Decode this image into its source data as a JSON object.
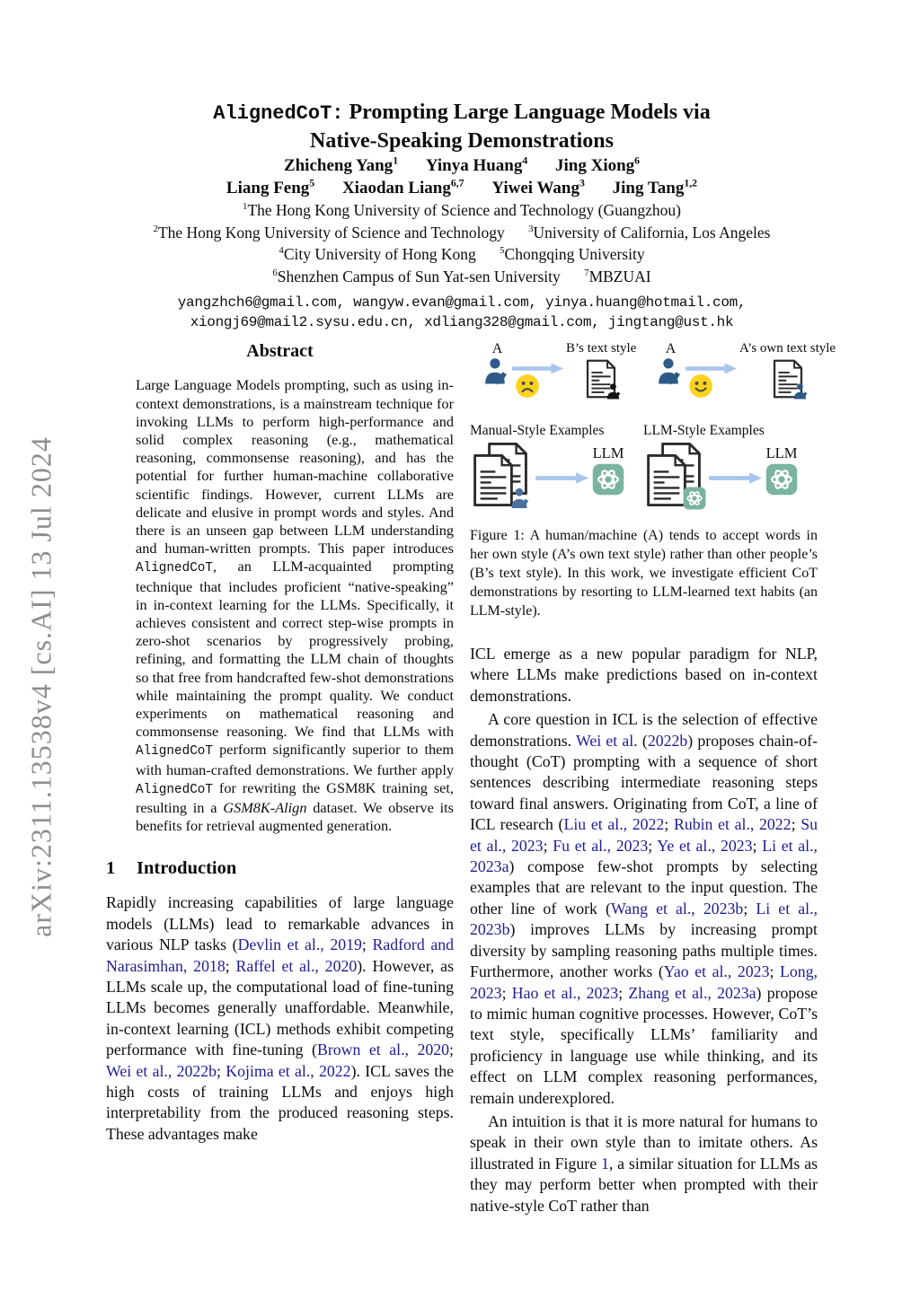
{
  "page": {
    "arxiv_sidebar": "arXiv:2311.13538v4  [cs.AI]  13 Jul 2024"
  },
  "colors": {
    "citation_navy": "#1d1d96",
    "person_blue": "#2d5a88",
    "arrow_blue": "#a9c5ed",
    "face_yellow": "#ffd21e",
    "openai_teal": "#7ab3a2",
    "sidebar_gray": "#8e8e8e"
  },
  "title": {
    "mono_part": "AlignedCoT:",
    "serif_part": " Prompting Large Language Models via",
    "line2": "Native-Speaking Demonstrations"
  },
  "authors": {
    "row1": [
      {
        "name": "Zhicheng Yang",
        "sup": "1"
      },
      {
        "name": "Yinya Huang",
        "sup": "4"
      },
      {
        "name": "Jing Xiong",
        "sup": "6"
      }
    ],
    "row2": [
      {
        "name": "Liang Feng",
        "sup": "5"
      },
      {
        "name": "Xiaodan Liang",
        "sup": "6,7"
      },
      {
        "name": "Yiwei Wang",
        "sup": "3"
      },
      {
        "name": "Jing Tang",
        "sup": "1,2"
      }
    ]
  },
  "affiliations": [
    [
      {
        "sup": "1",
        "text": "The Hong Kong University of Science and Technology (Guangzhou)"
      }
    ],
    [
      {
        "sup": "2",
        "text": "The Hong Kong University of Science and Technology"
      },
      {
        "sup": "3",
        "text": "University of California, Los Angeles"
      }
    ],
    [
      {
        "sup": "4",
        "text": "City University of Hong Kong"
      },
      {
        "sup": "5",
        "text": "Chongqing University"
      }
    ],
    [
      {
        "sup": "6",
        "text": "Shenzhen Campus of Sun Yat-sen University"
      },
      {
        "sup": "7",
        "text": "MBZUAI"
      }
    ]
  ],
  "emails": [
    "yangzhch6@gmail.com, wangyw.evan@gmail.com, yinya.huang@hotmail.com,",
    "xiongj69@mail2.sysu.edu.cn, xdliang328@gmail.com, jingtang@ust.hk"
  ],
  "abstract": {
    "heading": "Abstract",
    "segments": [
      "Large Language Models prompting, such as using in-context demonstrations, is a mainstream technique for invoking LLMs to perform high-performance and solid complex reasoning (e.g., mathematical reasoning, commonsense reasoning), and has the potential for further human-machine collaborative scientific findings. However, current LLMs are delicate and elusive in prompt words and styles. And there is an unseen gap between LLM understanding and human-written prompts. This paper introduces ",
      {
        "t": "AlignedCoT",
        "s": "code"
      },
      ", an LLM-acquainted prompting technique that includes proficient “native-speaking” in in-context learning for the LLMs. Specifically, it achieves consistent and correct step-wise prompts in zero-shot scenarios by progressively probing, refining, and formatting the LLM chain of thoughts so that free from handcrafted few-shot demonstrations while maintaining the prompt quality. We conduct experiments on mathematical reasoning and commonsense reasoning. We find that LLMs with ",
      {
        "t": "AlignedCoT",
        "s": "code"
      },
      " perform significantly superior to them with human-crafted demonstrations. We further apply ",
      {
        "t": "AlignedCoT",
        "s": "code"
      },
      " for rewriting the GSM8K training set, resulting in a ",
      {
        "t": "GSM8K-Align",
        "s": "italic"
      },
      " dataset. We observe its benefits for retrieval augmented generation."
    ]
  },
  "figure1": {
    "row_a": {
      "left": {
        "actor_label": "A",
        "target_label": "B’s text style"
      },
      "right": {
        "actor_label": "A",
        "target_label": "A’s own text style"
      }
    },
    "row_b": {
      "left": {
        "label": "Manual-Style Examples",
        "llm_label": "LLM"
      },
      "right": {
        "label": "LLM-Style Examples",
        "llm_label": "LLM"
      }
    },
    "caption": "Figure 1: A human/machine (A) tends to accept words in her own style (A’s own text style) rather than other people’s (B’s text style). In this work, we investigate efficient CoT demonstrations by resorting to LLM-learned text habits (an LLM-style)."
  },
  "sections": {
    "intro": {
      "number": "1",
      "title": "Introduction"
    }
  },
  "left_column": {
    "intro_para1_segments": [
      "Rapidly increasing capabilities of large language models (LLMs) lead to remarkable advances in various NLP tasks (",
      {
        "t": "Devlin et al., 2019",
        "s": "cite"
      },
      "; ",
      {
        "t": "Radford and Narasimhan, 2018",
        "s": "cite"
      },
      "; ",
      {
        "t": "Raffel et al., 2020",
        "s": "cite"
      },
      "). However, as LLMs scale up, the computational load of fine-tuning LLMs becomes generally unaffordable. Meanwhile, in-context learning (ICL) methods exhibit competing performance with fine-tuning (",
      {
        "t": "Brown et al., 2020",
        "s": "cite"
      },
      "; ",
      {
        "t": "Wei et al., 2022b",
        "s": "cite"
      },
      "; ",
      {
        "t": "Kojima et al., 2022",
        "s": "cite"
      },
      "). ICL saves the high costs of training LLMs and enjoys high interpretability from the produced reasoning steps. These advantages make"
    ]
  },
  "right_column": {
    "para1_segments": [
      "ICL emerge as a new popular paradigm for NLP, where LLMs make predictions based on in-context demonstrations."
    ],
    "para2_segments": [
      "A core question in ICL is the selection of effective demonstrations. ",
      {
        "t": "Wei et al.",
        "s": "cite"
      },
      " (",
      {
        "t": "2022b",
        "s": "cite"
      },
      ") proposes chain-of-thought (CoT) prompting with a sequence of short sentences describing intermediate reasoning steps toward final answers. Originating from CoT, a line of ICL research (",
      {
        "t": "Liu et al., 2022",
        "s": "cite"
      },
      "; ",
      {
        "t": "Rubin et al., 2022",
        "s": "cite"
      },
      "; ",
      {
        "t": "Su et al., 2023",
        "s": "cite"
      },
      "; ",
      {
        "t": "Fu et al., 2023",
        "s": "cite"
      },
      "; ",
      {
        "t": "Ye et al., 2023",
        "s": "cite"
      },
      "; ",
      {
        "t": "Li et al., 2023a",
        "s": "cite"
      },
      ") compose few-shot prompts by selecting examples that are relevant to the input question. The other line of work (",
      {
        "t": "Wang et al., 2023b",
        "s": "cite"
      },
      "; ",
      {
        "t": "Li et al., 2023b",
        "s": "cite"
      },
      ") improves LLMs by increasing prompt diversity by sampling reasoning paths multiple times. Furthermore, another works (",
      {
        "t": "Yao et al., 2023",
        "s": "cite"
      },
      "; ",
      {
        "t": "Long, 2023",
        "s": "cite"
      },
      "; ",
      {
        "t": "Hao et al., 2023",
        "s": "cite"
      },
      "; ",
      {
        "t": "Zhang et al., 2023a",
        "s": "cite"
      },
      ") propose to mimic human cognitive processes. However, CoT’s text style, specifically LLMs’ familiarity and proficiency in language use while thinking, and its effect on LLM complex reasoning performances, remain underexplored."
    ],
    "para3_segments": [
      "An intuition is that it is more natural for humans to speak in their own style than to imitate others. As illustrated in Figure ",
      {
        "t": "1",
        "s": "cite"
      },
      ", a similar situation for LLMs as they may perform better when prompted with their native-style CoT rather than"
    ]
  }
}
